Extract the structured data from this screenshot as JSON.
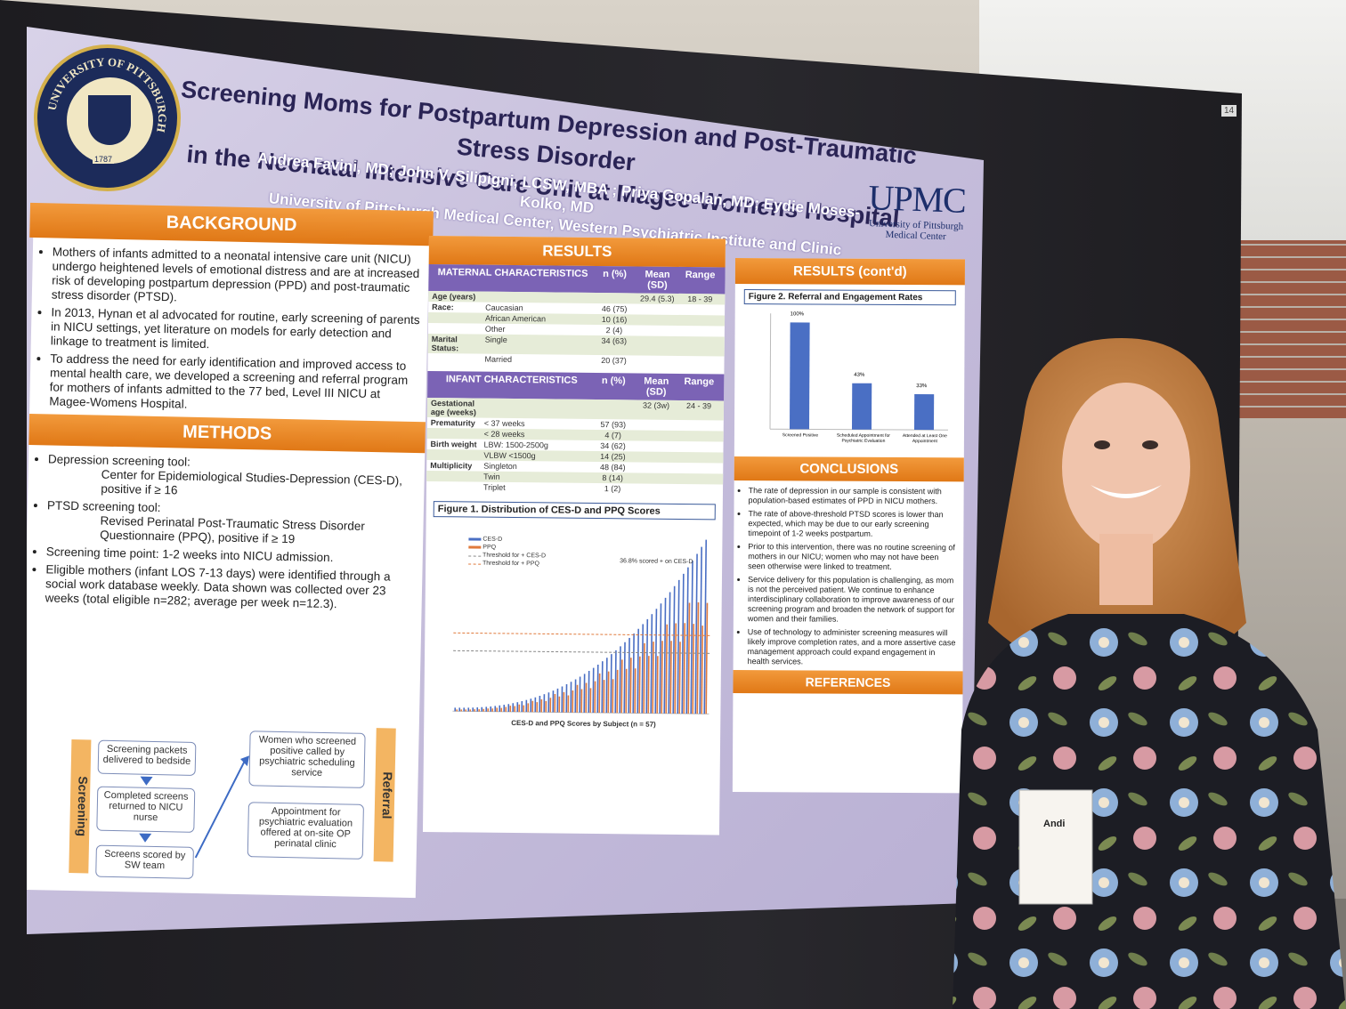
{
  "poster": {
    "title_line1": "Screening Moms for Postpartum Depression and Post-Traumatic Stress Disorder",
    "title_line2": "in the Neonatal Intensive Care Unit at Magee-Womens Hospital",
    "authors": "Andrea Favini, MD; John V. Silipigni, LCSW, MBA ; Priya Gopalan, MD; Eydie Moses-Kolko, MD",
    "affiliation": "University of Pittsburgh Medical Center, Western Psychiatric Institute and Clinic",
    "logo_main": "UPMC",
    "logo_sub1": "University of Pittsburgh",
    "logo_sub2": "Medical Center",
    "seal_text": "UNIVERSITY OF PITTSBURGH",
    "seal_year": "1787",
    "background": {
      "heading": "BACKGROUND",
      "bullets": [
        "Mothers of infants admitted to a neonatal intensive care unit (NICU) undergo heightened levels of emotional distress and are at increased risk of developing postpartum depression (PPD) and post-traumatic stress disorder (PTSD).",
        "In 2013, Hynan et al advocated for routine, early screening of parents in NICU settings, yet literature on models for early detection and linkage to treatment is limited.",
        "To address the need for early identification and improved access to mental health care, we developed a screening and referral program for mothers of infants admitted to the 77 bed, Level III NICU at Magee-Womens Hospital."
      ]
    },
    "methods": {
      "heading": "METHODS",
      "b1": "Depression screening tool:",
      "b1_sub": "Center for Epidemiological Studies-Depression (CES-D), positive if ≥ 16",
      "b2": "PTSD screening tool:",
      "b2_sub": "Revised Perinatal Post-Traumatic Stress Disorder Questionnaire (PPQ), positive if ≥ 19",
      "b3": "Screening time point: 1-2 weeks into NICU admission.",
      "b4": "Eligible mothers (infant LOS 7-13 days) were identified through a social work database weekly. Data shown was collected over 23 weeks (total eligible n=282; average per week n=12.3).",
      "flow_screening_label": "Screening",
      "flow_referral_label": "Referral",
      "flow1": "Screening packets delivered to bedside",
      "flow2": "Completed screens returned to NICU nurse",
      "flow3": "Screens scored by SW team",
      "flow4": "Women who screened positive called by psychiatric scheduling service",
      "flow5": "Appointment for psychiatric evaluation offered at on-site OP perinatal clinic"
    },
    "results": {
      "heading": "RESULTS",
      "maternal_header": "MATERNAL CHARACTERISTICS",
      "infant_header": "INFANT CHARACTERISTICS",
      "col_n": "n (%)",
      "col_mean": "Mean (SD)",
      "col_range": "Range",
      "maternal_rows": [
        {
          "label": "Age (years)",
          "item": "",
          "n": "",
          "mean": "29.4 (5.3)",
          "range": "18 - 39"
        },
        {
          "label": "Race:",
          "item": "Caucasian",
          "n": "46 (75)",
          "mean": "",
          "range": ""
        },
        {
          "label": "",
          "item": "African American",
          "n": "10 (16)",
          "mean": "",
          "range": ""
        },
        {
          "label": "",
          "item": "Other",
          "n": "2 (4)",
          "mean": "",
          "range": ""
        },
        {
          "label": "Marital Status:",
          "item": "Single",
          "n": "34 (63)",
          "mean": "",
          "range": ""
        },
        {
          "label": "",
          "item": "Married",
          "n": "20 (37)",
          "mean": "",
          "range": ""
        }
      ],
      "infant_rows": [
        {
          "label": "Gestational age (weeks)",
          "item": "",
          "n": "",
          "mean": "32 (3w)",
          "range": "24 - 39"
        },
        {
          "label": "Prematurity",
          "item": "< 37 weeks",
          "n": "57 (93)",
          "mean": "",
          "range": ""
        },
        {
          "label": "",
          "item": "< 28 weeks",
          "n": "4 (7)",
          "mean": "",
          "range": ""
        },
        {
          "label": "Birth weight",
          "item": "LBW: 1500-2500g",
          "n": "34 (62)",
          "mean": "",
          "range": ""
        },
        {
          "label": "",
          "item": "VLBW <1500g",
          "n": "14 (25)",
          "mean": "",
          "range": ""
        },
        {
          "label": "Multiplicity",
          "item": "Singleton",
          "n": "48 (84)",
          "mean": "",
          "range": ""
        },
        {
          "label": "",
          "item": "Twin",
          "n": "8 (14)",
          "mean": "",
          "range": ""
        },
        {
          "label": "",
          "item": "Triplet",
          "n": "1 (2)",
          "mean": "",
          "range": ""
        }
      ],
      "fig1_title": "Figure 1. Distribution of CES-D and PPQ Scores",
      "fig1_xlabel": "CES-D and PPQ Scores by Subject (n = 57)",
      "fig1_legend": [
        "CES-D",
        "PPQ",
        "Threshold for + CES-D",
        "Threshold for + PPQ"
      ],
      "fig1_annotation": "36.8% scored + on CES-D"
    },
    "results2": {
      "heading": "RESULTS (cont'd)",
      "fig2_title": "Figure 2. Referral and Engagement Rates",
      "fig2_categories": [
        "Screened Positive",
        "Scheduled Appointment for Psychiatric Evaluation",
        "Attended at Least One Appointment"
      ],
      "fig2_labels": [
        "100%",
        "43%",
        "33%"
      ]
    },
    "conclusions": {
      "heading": "CONCLUSIONS",
      "bullets": [
        "The rate of depression in our sample is consistent with population-based estimates of PPD in NICU mothers.",
        "The rate of above-threshold PTSD scores is lower than expected, which may be due to our early screening timepoint of 1-2 weeks postpartum.",
        "Prior to this intervention, there was no routine screening of mothers in our NICU; women who may not have been seen otherwise were linked to treatment.",
        "Service delivery for this population is challenging, as mom is not the perceived patient. We continue to enhance interdisciplinary collaboration to improve awareness of our screening program and broaden the network of support for women and their families.",
        "Use of technology to administer screening measures will likely improve completion rates, and a more assertive case management approach could expand engagement in health services."
      ]
    },
    "references": {
      "heading": "REFERENCES"
    }
  },
  "badge": {
    "name": "Andi"
  },
  "board_number": "14",
  "colors": {
    "orange": "#e88a2a",
    "purple": "#7b63b5",
    "navy": "#2a2455",
    "cesd": "#4a6fc4",
    "ppq": "#e07a3c"
  }
}
